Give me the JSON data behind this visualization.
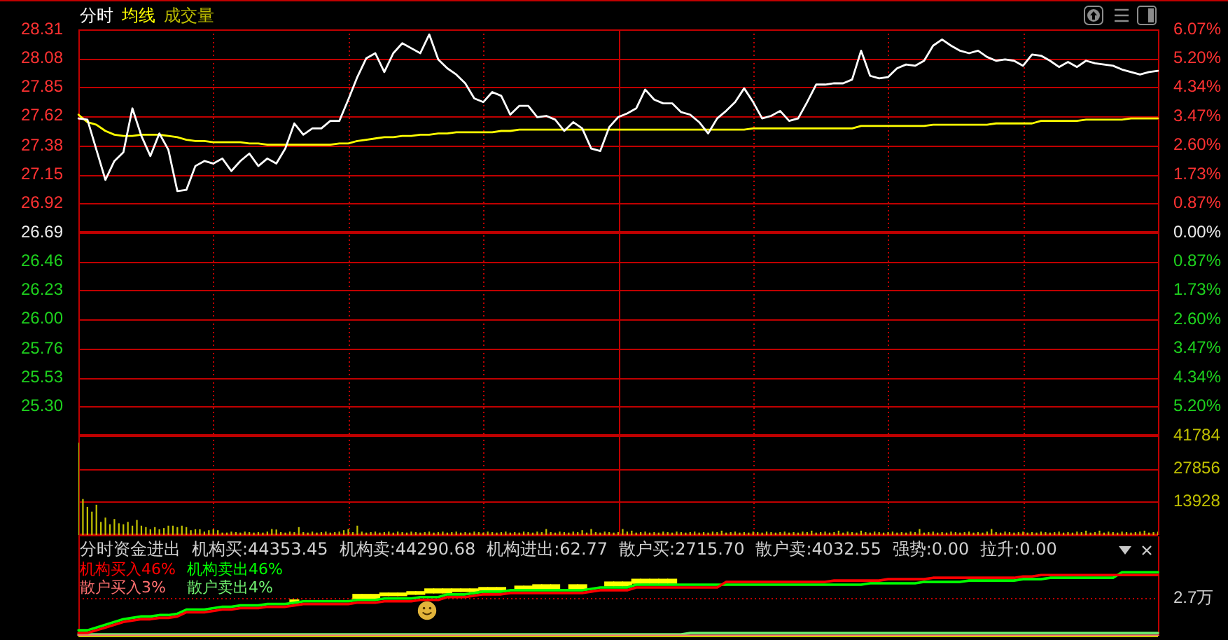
{
  "chart_data": [
    {
      "type": "line",
      "categories": [
        null,
        null,
        null,
        null,
        null,
        null,
        null,
        null,
        null,
        null,
        null,
        null,
        null,
        null,
        null,
        null,
        null,
        null,
        null,
        null,
        null,
        null,
        null,
        null,
        null,
        null,
        null,
        null,
        null,
        null,
        null,
        null,
        null,
        null,
        null,
        null,
        null,
        null,
        null,
        null,
        null,
        null,
        null,
        null,
        null,
        null,
        null,
        null,
        null,
        null,
        null,
        null,
        null,
        null,
        null,
        null,
        null,
        null,
        null,
        null,
        null,
        null,
        null,
        null,
        null,
        null,
        null,
        null,
        null,
        null,
        null,
        null,
        null,
        null,
        null,
        null,
        null,
        null,
        null,
        null,
        null,
        null,
        null,
        null,
        null,
        null,
        null,
        null,
        null,
        null,
        null,
        null,
        null,
        null,
        null,
        null,
        null,
        null,
        null,
        null,
        null,
        null,
        null,
        null,
        null,
        null,
        null,
        null,
        null,
        null,
        null,
        null,
        null,
        null,
        null,
        null,
        null,
        null,
        null,
        null,
        null
      ],
      "series": [
        {
          "name": "分时",
          "color": "#ffffff",
          "values": [
            27.6,
            27.59,
            27.35,
            27.11,
            27.26,
            27.33,
            27.68,
            27.46,
            27.3,
            27.48,
            27.35,
            27.02,
            27.03,
            27.22,
            27.26,
            27.24,
            27.28,
            27.18,
            27.26,
            27.32,
            27.22,
            27.28,
            27.24,
            27.36,
            27.56,
            27.47,
            27.52,
            27.52,
            27.58,
            27.58,
            27.75,
            27.93,
            28.08,
            28.12,
            27.97,
            28.12,
            28.2,
            28.16,
            28.12,
            28.27,
            28.07,
            28.0,
            27.95,
            27.88,
            27.76,
            27.73,
            27.81,
            27.78,
            27.63,
            27.7,
            27.7,
            27.61,
            27.62,
            27.59,
            27.5,
            27.57,
            27.52,
            27.36,
            27.34,
            27.53,
            27.61,
            27.64,
            27.68,
            27.83,
            27.75,
            27.72,
            27.72,
            27.65,
            27.63,
            27.57,
            27.48,
            27.6,
            27.66,
            27.73,
            27.84,
            27.73,
            27.6,
            27.62,
            27.66,
            27.58,
            27.6,
            27.73,
            27.87,
            27.87,
            27.88,
            27.88,
            27.91,
            28.14,
            27.94,
            27.92,
            27.93,
            28.0,
            28.03,
            28.02,
            28.06,
            28.18,
            28.23,
            28.18,
            28.14,
            28.12,
            28.14,
            28.09,
            28.06,
            28.07,
            28.06,
            28.02,
            28.11,
            28.1,
            28.06,
            28.01,
            28.05,
            28.01,
            28.06,
            28.04,
            28.03,
            28.02,
            27.99,
            27.97,
            27.95,
            27.97,
            27.98
          ]
        },
        {
          "name": "均线",
          "color": "#ffff00",
          "values": [
            27.63,
            27.57,
            27.55,
            27.5,
            27.47,
            27.46,
            27.46,
            27.47,
            27.47,
            27.47,
            27.46,
            27.45,
            27.43,
            27.42,
            27.42,
            27.41,
            27.41,
            27.41,
            27.41,
            27.4,
            27.4,
            27.39,
            27.39,
            27.39,
            27.39,
            27.39,
            27.39,
            27.39,
            27.39,
            27.4,
            27.4,
            27.42,
            27.43,
            27.44,
            27.45,
            27.45,
            27.46,
            27.46,
            27.47,
            27.47,
            27.48,
            27.48,
            27.49,
            27.49,
            27.49,
            27.49,
            27.49,
            27.5,
            27.5,
            27.51,
            27.51,
            27.51,
            27.51,
            27.51,
            27.51,
            27.51,
            27.51,
            27.51,
            27.51,
            27.51,
            27.51,
            27.51,
            27.51,
            27.51,
            27.51,
            27.51,
            27.51,
            27.51,
            27.51,
            27.51,
            27.51,
            27.51,
            27.51,
            27.51,
            27.51,
            27.52,
            27.52,
            27.52,
            27.52,
            27.52,
            27.52,
            27.52,
            27.52,
            27.52,
            27.52,
            27.52,
            27.52,
            27.54,
            27.54,
            27.54,
            27.54,
            27.54,
            27.54,
            27.54,
            27.54,
            27.55,
            27.55,
            27.55,
            27.55,
            27.55,
            27.55,
            27.55,
            27.56,
            27.56,
            27.56,
            27.56,
            27.56,
            27.58,
            27.58,
            27.58,
            27.58,
            27.58,
            27.59,
            27.59,
            27.59,
            27.59,
            27.59,
            27.6,
            27.6,
            27.6,
            27.6
          ]
        }
      ],
      "ylim": [
        25.07,
        28.31
      ],
      "yticks": [
        28.31,
        28.08,
        27.85,
        27.62,
        27.38,
        27.15,
        26.92,
        26.69,
        26.46,
        26.23,
        {
          "value": 26,
          "label": "26.00"
        },
        25.76,
        25.53,
        {
          "value": 25.3,
          "label": "25.30"
        }
      ],
      "y2lim": [
        -6.07,
        6.07
      ],
      "y2ticks": [
        {
          "value": 6.07,
          "label": "6.07%"
        },
        {
          "value": 5.2,
          "label": "5.20%"
        },
        {
          "value": 4.34,
          "label": "4.34%"
        },
        {
          "value": 3.47,
          "label": "3.47%"
        },
        {
          "value": 2.6,
          "label": "2.60%"
        },
        {
          "value": 1.73,
          "label": "1.73%"
        },
        {
          "value": 0.87,
          "label": "0.87%"
        },
        {
          "value": 0,
          "label": "0.00%"
        },
        {
          "value": -0.87,
          "label": "0.87%"
        },
        {
          "value": -1.73,
          "label": "1.73%"
        },
        {
          "value": -2.6,
          "label": "2.60%"
        },
        {
          "value": -3.47,
          "label": "3.47%"
        },
        {
          "value": -4.34,
          "label": "4.34%"
        },
        {
          "value": -5.2,
          "label": "5.20%"
        }
      ],
      "ref_lines": [
        {
          "axis": "y",
          "value": 26.69
        }
      ],
      "grid": true,
      "legend": "top left"
    },
    {
      "type": "bar",
      "categories": [
        null,
        null,
        null,
        null,
        null,
        null,
        null,
        null,
        null,
        null,
        null,
        null,
        null,
        null,
        null,
        null,
        null,
        null,
        null,
        null,
        null,
        null,
        null,
        null,
        null,
        null,
        null,
        null,
        null,
        null,
        null,
        null,
        null,
        null,
        null,
        null,
        null,
        null,
        null,
        null,
        null,
        null,
        null,
        null,
        null,
        null,
        null,
        null,
        null,
        null,
        null,
        null,
        null,
        null,
        null,
        null,
        null,
        null,
        null,
        null,
        null,
        null,
        null,
        null,
        null,
        null,
        null,
        null,
        null,
        null,
        null,
        null,
        null,
        null,
        null,
        null,
        null,
        null,
        null,
        null,
        null,
        null,
        null,
        null,
        null,
        null,
        null,
        null,
        null,
        null,
        null,
        null,
        null,
        null,
        null,
        null,
        null,
        null,
        null,
        null,
        null,
        null,
        null,
        null,
        null,
        null,
        null,
        null,
        null,
        null,
        null,
        null,
        null,
        null,
        null,
        null,
        null,
        null,
        null,
        null,
        null,
        null,
        null,
        null,
        null,
        null,
        null,
        null,
        null,
        null,
        null,
        null,
        null,
        null,
        null,
        null,
        null,
        null,
        null,
        null,
        null,
        null,
        null,
        null,
        null,
        null,
        null,
        null,
        null,
        null,
        null,
        null,
        null,
        null,
        null,
        null,
        null,
        null,
        null,
        null,
        null,
        null,
        null,
        null,
        null,
        null,
        null,
        null,
        null,
        null,
        null,
        null,
        null,
        null,
        null,
        null,
        null,
        null,
        null,
        null,
        null,
        null,
        null,
        null,
        null,
        null,
        null,
        null,
        null,
        null,
        null,
        null,
        null,
        null,
        null,
        null,
        null,
        null,
        null,
        null,
        null,
        null,
        null,
        null,
        null,
        null,
        null,
        null,
        null,
        null,
        null,
        null,
        null,
        null,
        null,
        null,
        null,
        null,
        null,
        null,
        null,
        null,
        null,
        null,
        null,
        null,
        null,
        null,
        null,
        null,
        null,
        null,
        null,
        null,
        null,
        null,
        null,
        null,
        null,
        null,
        null
      ],
      "series": [
        {
          "name": "成交量",
          "color": "#c0c000",
          "values": [
            38800,
            15100,
            11800,
            9800,
            12700,
            5500,
            7300,
            4500,
            6700,
            4900,
            4500,
            5500,
            3900,
            6300,
            3900,
            3300,
            2400,
            3300,
            2400,
            2900,
            3900,
            3900,
            3300,
            3900,
            3300,
            2000,
            2400,
            2400,
            1400,
            2000,
            2400,
            2000,
            1000,
            1000,
            1400,
            1200,
            1000,
            1400,
            1200,
            1000,
            1200,
            1000,
            1400,
            2500,
            2300,
            1200,
            1000,
            1400,
            1200,
            3300,
            1200,
            1000,
            1400,
            1000,
            1200,
            1400,
            1000,
            1200,
            1400,
            2000,
            2500,
            1200,
            3900,
            1400,
            1000,
            1200,
            1400,
            1000,
            1200,
            1400,
            1000,
            1400,
            1200,
            1000,
            1400,
            1200,
            1000,
            1200,
            1400,
            1000,
            1200,
            1400,
            1000,
            1200,
            1400,
            1000,
            1200,
            1000,
            1400,
            1200,
            1000,
            1400,
            1200,
            1000,
            1200,
            1400,
            1000,
            1200,
            1000,
            1400,
            1200,
            1000,
            1400,
            1200,
            2500,
            1200,
            1000,
            1400,
            1200,
            1000,
            1400,
            1200,
            2000,
            1000,
            2500,
            1200,
            1000,
            1400,
            1200,
            1000,
            1200,
            2500,
            1400,
            1800,
            1000,
            1200,
            1400,
            1000,
            1200,
            1000,
            1400,
            1200,
            1000,
            1400,
            1200,
            1000,
            1200,
            1400,
            1000,
            1200,
            1000,
            1400,
            1200,
            1800,
            1000,
            1200,
            1400,
            1000,
            1200,
            1000,
            1400,
            1200,
            1000,
            1400,
            1200,
            1000,
            1200,
            1400,
            1000,
            1200,
            1000,
            1400,
            1200,
            1800,
            1000,
            1200,
            1400,
            1000,
            1200,
            1800,
            1000,
            1400,
            1200,
            1000,
            1800,
            1200,
            1000,
            1400,
            1200,
            1000,
            1200,
            1400,
            1000,
            1200,
            1000,
            1400,
            1200,
            2500,
            1000,
            1200,
            1400,
            1000,
            1200,
            1000,
            1400,
            1200,
            1000,
            1200,
            1400,
            1000,
            1200,
            1000,
            1400,
            2500,
            1200,
            1000,
            1400,
            1200,
            1000,
            1200,
            1400,
            1000,
            1200,
            1000,
            1400,
            1200,
            1000,
            1200,
            1400,
            1000,
            1200,
            1000,
            1400,
            1200,
            1800,
            1000,
            1200,
            1800,
            1000,
            1400,
            1200,
            1000,
            1400,
            1200,
            1000,
            1200,
            1400,
            1800,
            1000,
            1200,
            1400
          ]
        }
      ],
      "ylim": [
        0,
        41784
      ],
      "yticks": [
        13928,
        27856,
        41784
      ],
      "grid": true,
      "legend": "top left"
    },
    {
      "type": "line",
      "title": "分时资金进出",
      "categories": [
        null,
        null,
        null,
        null,
        null,
        null,
        null,
        null,
        null,
        null,
        null,
        null,
        null,
        null,
        null,
        null,
        null,
        null,
        null,
        null,
        null,
        null,
        null,
        null,
        null,
        null,
        null,
        null,
        null,
        null,
        null,
        null,
        null,
        null,
        null,
        null,
        null,
        null,
        null,
        null,
        null,
        null,
        null,
        null,
        null,
        null,
        null,
        null,
        null,
        null,
        null,
        null,
        null,
        null,
        null,
        null,
        null,
        null,
        null,
        null,
        null,
        null,
        null,
        null,
        null,
        null,
        null,
        null,
        null,
        null,
        null,
        null,
        null,
        null,
        null,
        null,
        null,
        null,
        null,
        null,
        null,
        null,
        null,
        null,
        null,
        null,
        null,
        null,
        null,
        null,
        null,
        null,
        null,
        null,
        null,
        null,
        null,
        null,
        null,
        null,
        null,
        null,
        null,
        null,
        null,
        null,
        null,
        null,
        null,
        null,
        null,
        null,
        null,
        null,
        null,
        null,
        null,
        null,
        null,
        null,
        null
      ],
      "series": [
        {
          "name": "机构买入46%",
          "color": "#ff0000",
          "values": [
            0.2,
            0.2,
            0.4,
            0.6,
            0.8,
            1.0,
            1.1,
            1.2,
            1.2,
            1.3,
            1.3,
            1.4,
            1.7,
            1.7,
            1.7,
            1.8,
            1.9,
            1.9,
            2.0,
            2.0,
            2.0,
            2.1,
            2.1,
            2.1,
            2.2,
            2.3,
            2.3,
            2.3,
            2.3,
            2.3,
            2.3,
            2.4,
            2.4,
            2.4,
            2.5,
            2.5,
            2.5,
            2.5,
            2.6,
            2.6,
            2.6,
            2.8,
            2.8,
            2.8,
            2.9,
            3.0,
            3.0,
            3.0,
            3.1,
            3.1,
            3.1,
            3.1,
            3.1,
            3.1,
            3.1,
            3.1,
            3.1,
            3.2,
            3.3,
            3.3,
            3.3,
            3.3,
            3.5,
            3.5,
            3.5,
            3.5,
            3.5,
            3.5,
            3.5,
            3.5,
            3.5,
            3.5,
            3.9,
            3.9,
            3.9,
            3.9,
            3.9,
            3.9,
            3.9,
            3.9,
            3.9,
            3.9,
            3.9,
            3.9,
            4.0,
            4.0,
            4.0,
            4.0,
            4.0,
            4.0,
            4.1,
            4.1,
            4.1,
            4.1,
            4.1,
            4.2,
            4.2,
            4.2,
            4.2,
            4.2,
            4.2,
            4.2,
            4.2,
            4.2,
            4.2,
            4.3,
            4.3,
            4.4,
            4.4,
            4.4,
            4.4,
            4.4,
            4.4,
            4.4,
            4.4,
            4.4,
            4.4,
            4.4,
            4.4,
            4.4,
            4.4
          ]
        },
        {
          "name": "机构卖出46%",
          "color": "#00ff00",
          "values": [
            0.4,
            0.4,
            0.6,
            0.8,
            1.0,
            1.2,
            1.3,
            1.4,
            1.4,
            1.5,
            1.5,
            1.6,
            1.9,
            1.9,
            1.9,
            2.0,
            2.1,
            2.1,
            2.2,
            2.2,
            2.2,
            2.3,
            2.3,
            2.3,
            2.4,
            2.5,
            2.5,
            2.5,
            2.5,
            2.5,
            2.5,
            2.6,
            2.6,
            2.6,
            2.7,
            2.7,
            2.7,
            2.7,
            2.8,
            2.8,
            2.8,
            3.0,
            3.0,
            3.0,
            3.1,
            3.2,
            3.2,
            3.2,
            3.3,
            3.3,
            3.3,
            3.3,
            3.3,
            3.3,
            3.3,
            3.3,
            3.3,
            3.4,
            3.5,
            3.5,
            3.5,
            3.5,
            3.7,
            3.7,
            3.7,
            3.7,
            3.7,
            3.7,
            3.7,
            3.7,
            3.7,
            3.7,
            3.7,
            3.7,
            3.7,
            3.7,
            3.7,
            3.7,
            3.7,
            3.7,
            3.7,
            3.7,
            3.7,
            3.7,
            3.7,
            3.7,
            3.7,
            3.7,
            3.8,
            3.8,
            3.8,
            3.8,
            3.8,
            3.8,
            3.9,
            3.9,
            3.9,
            3.9,
            3.9,
            4.0,
            4.0,
            4.0,
            4.0,
            4.0,
            4.0,
            4.1,
            4.1,
            4.1,
            4.2,
            4.2,
            4.2,
            4.2,
            4.2,
            4.2,
            4.2,
            4.2,
            4.6,
            4.6,
            4.6,
            4.6,
            4.6
          ]
        },
        {
          "name": "散户买入3%",
          "color": "#ff7070",
          "values": [
            0,
            0,
            0,
            0,
            0,
            0,
            0,
            0,
            0,
            0,
            0,
            0,
            0,
            0,
            0,
            0,
            0,
            0,
            0,
            0,
            0,
            0,
            0,
            0,
            0,
            0,
            0,
            0,
            0,
            0,
            0,
            0,
            0,
            0,
            0,
            0,
            0,
            0,
            0,
            0,
            0,
            0,
            0,
            0,
            0,
            0,
            0,
            0,
            0,
            0,
            0,
            0,
            0,
            0,
            0,
            0,
            0,
            0,
            0,
            0,
            0,
            0,
            0,
            0,
            0,
            0,
            0,
            0,
            0,
            0,
            0,
            0,
            0,
            0,
            0,
            0,
            0,
            0,
            0,
            0,
            0,
            0,
            0,
            0,
            0,
            0,
            0,
            0,
            0,
            0,
            0,
            0,
            0,
            0,
            0,
            0,
            0,
            0,
            0,
            0,
            0,
            0,
            0,
            0,
            0,
            0,
            0,
            0,
            0,
            0,
            0,
            0,
            0,
            0,
            0,
            0,
            0,
            0,
            0,
            0,
            0
          ]
        },
        {
          "name": "散户卖出4%",
          "color": "#70f070",
          "values": [
            0.1,
            0.1,
            0.1,
            0.1,
            0.1,
            0.1,
            0.1,
            0.1,
            0.1,
            0.1,
            0.1,
            0.1,
            0.1,
            0.1,
            0.1,
            0.1,
            0.1,
            0.1,
            0.1,
            0.1,
            0.1,
            0.1,
            0.1,
            0.1,
            0.1,
            0.1,
            0.1,
            0.1,
            0.1,
            0.1,
            0.1,
            0.1,
            0.1,
            0.1,
            0.1,
            0.1,
            0.1,
            0.1,
            0.1,
            0.1,
            0.1,
            0.1,
            0.1,
            0.1,
            0.1,
            0.1,
            0.1,
            0.1,
            0.1,
            0.1,
            0.1,
            0.1,
            0.1,
            0.1,
            0.1,
            0.1,
            0.1,
            0.1,
            0.1,
            0.1,
            0.1,
            0.1,
            0.1,
            0.1,
            0.1,
            0.1,
            0.1,
            0.1,
            0.2,
            0.2,
            0.2,
            0.2,
            0.2,
            0.2,
            0.2,
            0.2,
            0.2,
            0.2,
            0.2,
            0.2,
            0.2,
            0.2,
            0.2,
            0.2,
            0.2,
            0.2,
            0.2,
            0.2,
            0.2,
            0.2,
            0.2,
            0.2,
            0.2,
            0.2,
            0.2,
            0.2,
            0.2,
            0.2,
            0.2,
            0.2,
            0.2,
            0.2,
            0.2,
            0.2,
            0.2,
            0.2,
            0.2,
            0.2,
            0.2,
            0.2,
            0.2,
            0.2,
            0.2,
            0.2,
            0.2,
            0.2,
            0.2,
            0.2,
            0.2,
            0.2,
            0.2
          ]
        },
        {
          "type": "bar",
          "color": "#ffff00",
          "base": [
            null,
            null,
            null,
            null,
            null,
            null,
            null,
            null,
            null,
            null,
            null,
            null,
            null,
            null,
            null,
            null,
            null,
            null,
            null,
            null,
            null,
            null,
            null,
            null,
            2.4,
            null,
            null,
            null,
            null,
            null,
            null,
            2.7,
            2.7,
            2.7,
            2.9,
            2.9,
            2.9,
            3.0,
            3.0,
            3.1,
            3.1,
            3.1,
            3.2,
            3.2,
            3.2,
            3.3,
            3.3,
            3.3,
            null,
            3.4,
            3.4,
            3.4,
            3.4,
            3.4,
            null,
            3.4,
            3.4,
            null,
            null,
            3.6,
            3.6,
            3.6,
            3.8,
            3.8,
            3.8,
            3.8,
            3.8,
            null,
            null,
            null,
            null,
            null,
            null,
            null,
            null,
            null,
            null,
            null,
            null,
            null,
            null,
            null,
            null,
            null,
            null,
            null,
            null,
            null,
            null,
            null,
            null,
            null,
            null,
            null,
            null,
            null,
            null,
            null,
            null,
            null,
            null,
            null,
            null,
            null,
            null,
            null,
            null,
            null,
            null,
            null,
            null,
            null,
            null,
            null,
            null,
            null,
            null,
            null,
            null,
            null,
            null
          ],
          "values": [
            null,
            null,
            null,
            null,
            null,
            null,
            null,
            null,
            null,
            null,
            null,
            null,
            null,
            null,
            null,
            null,
            null,
            null,
            null,
            null,
            null,
            null,
            null,
            null,
            0.2,
            null,
            null,
            null,
            null,
            null,
            null,
            0.3,
            0.3,
            0.3,
            0.2,
            0.2,
            0.2,
            0.2,
            0.2,
            0.3,
            0.3,
            0.3,
            0.2,
            0.2,
            0.2,
            0.2,
            0.2,
            0.2,
            null,
            0.2,
            0.2,
            0.3,
            0.3,
            0.3,
            null,
            0.3,
            0.3,
            null,
            null,
            0.3,
            0.3,
            0.3,
            0.3,
            0.3,
            0.3,
            0.3,
            0.3,
            null,
            null,
            null,
            null,
            null,
            null,
            null,
            null,
            null,
            null,
            null,
            null,
            null,
            null,
            null,
            null,
            null,
            null,
            null,
            null,
            null,
            null,
            null,
            null,
            null,
            null,
            null,
            null,
            null,
            null,
            null,
            null,
            null,
            null,
            null,
            null,
            null,
            null,
            null,
            null,
            null,
            null,
            null,
            null,
            null,
            null,
            null,
            null,
            null,
            null,
            null,
            null,
            null,
            null
          ]
        }
      ],
      "ylim": [
        0,
        7.2
      ],
      "yticks": [
        {
          "value": 2.7,
          "label": "2.7万"
        }
      ],
      "ref_lines": [
        {
          "axis": "y",
          "value": 2.7,
          "line_style": "dotted"
        }
      ],
      "legend": "top left",
      "annotations": [
        "机构买:44353.45",
        "机构卖:44290.68",
        "机构进出:62.77",
        "散户买:2715.70",
        "散户卖:4032.55",
        "强势:0.00",
        "拉升:0.00"
      ]
    }
  ]
}
